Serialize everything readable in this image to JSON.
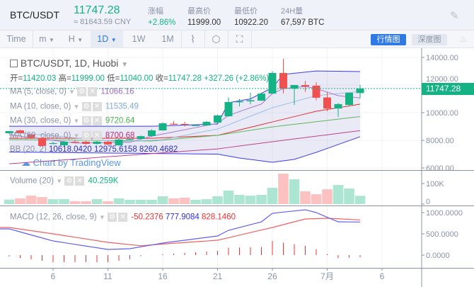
{
  "header": {
    "pair": "BTC/USDT",
    "last_price": "11747.28",
    "cny_price": "≈ 81643.59 CNY",
    "stats": [
      {
        "label": "涨幅",
        "value": "+2.86%",
        "color": "#14b284"
      },
      {
        "label": "最高价",
        "value": "11999.00"
      },
      {
        "label": "最低价",
        "value": "10922.20"
      },
      {
        "label": "24H量",
        "value": "67,597 BTC"
      }
    ],
    "settings_icon": "pen-off-icon"
  },
  "toolbar": {
    "items": [
      "Time",
      "m",
      "H",
      "1D",
      "1W",
      "1M"
    ],
    "active": "1D",
    "dropdown_items": [
      "m",
      "H",
      "1D"
    ],
    "icons": [
      "indicator-icon",
      "hexagon-settings-icon",
      "fullscreen-icon"
    ],
    "buttons": [
      {
        "label": "行情图",
        "active": true
      },
      {
        "label": "深度图",
        "active": false
      }
    ],
    "right_icon": "flame-icon"
  },
  "legend": {
    "title": "BTC/USDT, 1D, Huobi",
    "ohlc": [
      {
        "k": "开=",
        "v": "11420.03"
      },
      {
        "k": "高=",
        "v": "11999.00"
      },
      {
        "k": "低=",
        "v": "11040.00"
      },
      {
        "k": "收=",
        "v": "11747.28"
      }
    ],
    "change": "+327.26 (+2.86%)",
    "studies": [
      {
        "name": "MA (5, close, 0)",
        "value": "11066.16",
        "color": "#9c6bc8"
      },
      {
        "name": "MA (10, close, 0)",
        "value": "11535.49",
        "color": "#7fa8dd"
      },
      {
        "name": "MA (30, close, 0)",
        "value": "9720.64",
        "color": "#4caf50"
      },
      {
        "name": "MA (60, close, 0)",
        "value": "8700.68",
        "color": "#b0307a"
      }
    ],
    "bb": {
      "name": "BB (20, 2)",
      "values": [
        "10618.0420",
        "12975.6158",
        "8260.4682"
      ]
    },
    "watermark": "Chart by TradingView"
  },
  "colors": {
    "up": "#14b284",
    "down": "#f05050",
    "bb": "#3b3bf0",
    "bb_mid": "#e03030",
    "accent": "#2f7ae5"
  },
  "chart_data": {
    "type": "candlestick",
    "price_axis": {
      "ticks": [
        "14000.00",
        "12000.00",
        "10000.00",
        "8000.00",
        "6000.00"
      ],
      "values": [
        14000,
        12000,
        10000,
        8000,
        6000
      ],
      "range": [
        5900,
        14400
      ],
      "last_label": "11747.28"
    },
    "x_ticks": [
      {
        "d": "06-06",
        "label": "6"
      },
      {
        "d": "06-11",
        "label": "11"
      },
      {
        "d": "06-16",
        "label": "16"
      },
      {
        "d": "06-21",
        "label": "21"
      },
      {
        "d": "06-26",
        "label": "26"
      },
      {
        "d": "07-01",
        "label": "7月"
      },
      {
        "d": "07-06",
        "label": "6"
      }
    ],
    "candles": [
      {
        "d": "06-02",
        "o": 8513,
        "h": 8620,
        "l": 8450,
        "c": 8667,
        "v": 22
      },
      {
        "d": "06-03",
        "o": 8718,
        "h": 8760,
        "l": 8480,
        "c": 8513,
        "v": 28
      },
      {
        "d": "06-04",
        "o": 8410,
        "h": 8450,
        "l": 8100,
        "c": 8154,
        "v": 41
      },
      {
        "d": "06-05",
        "o": 8154,
        "h": 8200,
        "l": 7550,
        "c": 7590,
        "v": 34
      },
      {
        "d": "06-06",
        "o": 7750,
        "h": 7900,
        "l": 7700,
        "c": 7800,
        "v": 24
      },
      {
        "d": "06-07",
        "o": 7641,
        "h": 7950,
        "l": 7600,
        "c": 7897,
        "v": 24
      },
      {
        "d": "06-08",
        "o": 7897,
        "h": 8000,
        "l": 7850,
        "c": 7860,
        "v": 14
      },
      {
        "d": "06-09",
        "o": 7897,
        "h": 7950,
        "l": 7700,
        "c": 7741,
        "v": 14
      },
      {
        "d": "06-10",
        "o": 7741,
        "h": 7950,
        "l": 7700,
        "c": 7897,
        "v": 24
      },
      {
        "d": "06-11",
        "o": 7897,
        "h": 7950,
        "l": 7650,
        "c": 7700,
        "v": 14
      },
      {
        "d": "06-12",
        "o": 7641,
        "h": 8100,
        "l": 7600,
        "c": 8051,
        "v": 28
      },
      {
        "d": "06-13",
        "o": 8051,
        "h": 8150,
        "l": 8000,
        "c": 8100,
        "v": 21
      },
      {
        "d": "06-14",
        "o": 8100,
        "h": 8350,
        "l": 8050,
        "c": 8300,
        "v": 21
      },
      {
        "d": "06-15",
        "o": 8308,
        "h": 8800,
        "l": 8250,
        "c": 8718,
        "v": 21
      },
      {
        "d": "06-16",
        "o": 8718,
        "h": 9300,
        "l": 8700,
        "c": 9231,
        "v": 38
      },
      {
        "d": "06-17",
        "o": 9200,
        "h": 9400,
        "l": 9050,
        "c": 9180,
        "v": 28
      },
      {
        "d": "06-18",
        "o": 9180,
        "h": 9350,
        "l": 9000,
        "c": 9120,
        "v": 31
      },
      {
        "d": "06-19",
        "o": 9077,
        "h": 9120,
        "l": 9050,
        "c": 9100,
        "v": 21
      },
      {
        "d": "06-20",
        "o": 9077,
        "h": 9400,
        "l": 9050,
        "c": 9333,
        "v": 24
      },
      {
        "d": "06-21",
        "o": 9280,
        "h": 9850,
        "l": 9250,
        "c": 9800,
        "v": 38
      },
      {
        "d": "06-22",
        "o": 9740,
        "h": 11100,
        "l": 9700,
        "c": 10770,
        "v": 66
      },
      {
        "d": "06-23",
        "o": 10750,
        "h": 11000,
        "l": 10450,
        "c": 10820,
        "v": 45
      },
      {
        "d": "06-24",
        "o": 10820,
        "h": 11450,
        "l": 10600,
        "c": 10900,
        "v": 41
      },
      {
        "d": "06-25",
        "o": 10870,
        "h": 11450,
        "l": 10850,
        "c": 11380,
        "v": 45
      },
      {
        "d": "06-26",
        "o": 11380,
        "h": 13000,
        "l": 11350,
        "c": 12870,
        "v": 79
      },
      {
        "d": "06-27",
        "o": 12870,
        "h": 13900,
        "l": 11400,
        "c": 11740,
        "v": 148
      },
      {
        "d": "06-28",
        "o": 11740,
        "h": 12000,
        "l": 10560,
        "c": 12000,
        "v": 121
      },
      {
        "d": "06-29",
        "o": 12000,
        "h": 12300,
        "l": 11500,
        "c": 11900,
        "v": 62
      },
      {
        "d": "06-30",
        "o": 11950,
        "h": 12200,
        "l": 10900,
        "c": 11080,
        "v": 48
      },
      {
        "d": "07-01",
        "o": 11100,
        "h": 11500,
        "l": 10100,
        "c": 10300,
        "v": 72
      },
      {
        "d": "07-02",
        "o": 10300,
        "h": 10700,
        "l": 9700,
        "c": 10620,
        "v": 93
      },
      {
        "d": "07-03",
        "o": 10560,
        "h": 11450,
        "l": 10450,
        "c": 11440,
        "v": 76
      },
      {
        "d": "07-04",
        "o": 11420.03,
        "h": 11999,
        "l": 11040,
        "c": 11747.28,
        "v": 40.259
      }
    ],
    "lines": {
      "ma5": [
        [
          "06-02",
          8400
        ],
        [
          "06-08",
          7800
        ],
        [
          "06-13",
          7850
        ],
        [
          "06-15",
          8300
        ],
        [
          "06-21",
          9230
        ],
        [
          "06-22",
          9800
        ],
        [
          "06-24",
          10360
        ],
        [
          "06-25",
          10620
        ],
        [
          "06-26",
          11380
        ],
        [
          "06-27",
          11740
        ],
        [
          "06-29",
          11900
        ],
        [
          "06-30",
          11740
        ],
        [
          "07-01",
          11490
        ],
        [
          "07-02",
          11230
        ],
        [
          "07-04",
          11066
        ]
      ],
      "ma10": [
        [
          "06-02",
          8600
        ],
        [
          "06-12",
          7900
        ],
        [
          "06-16",
          8050
        ],
        [
          "06-21",
          8820
        ],
        [
          "06-26",
          10360
        ],
        [
          "06-30",
          11230
        ],
        [
          "07-04",
          11535
        ]
      ],
      "ma30": [
        [
          "06-02",
          8050
        ],
        [
          "06-15",
          7950
        ],
        [
          "06-21",
          8360
        ],
        [
          "06-26",
          8970
        ],
        [
          "07-04",
          9720
        ]
      ],
      "ma60": [
        [
          "06-02",
          6300
        ],
        [
          "06-21",
          7380
        ],
        [
          "06-26",
          7900
        ],
        [
          "07-04",
          8700
        ]
      ],
      "bb_mid": [
        [
          "06-02",
          8150
        ],
        [
          "06-15",
          8150
        ],
        [
          "06-21",
          8360
        ],
        [
          "06-26",
          9330
        ],
        [
          "06-30",
          10100
        ],
        [
          "07-04",
          10618
        ]
      ],
      "bb_upper": [
        [
          "06-02",
          9020
        ],
        [
          "06-15",
          9020
        ],
        [
          "06-21",
          9180
        ],
        [
          "06-22",
          10720
        ],
        [
          "06-24",
          11000
        ],
        [
          "06-26",
          11800
        ],
        [
          "06-27",
          12770
        ],
        [
          "06-30",
          13020
        ],
        [
          "07-04",
          12975
        ]
      ],
      "bb_lower": [
        [
          "06-02",
          7150
        ],
        [
          "06-21",
          7000
        ],
        [
          "06-23",
          6720
        ],
        [
          "06-26",
          6410
        ],
        [
          "06-28",
          6620
        ],
        [
          "06-30",
          7130
        ],
        [
          "07-04",
          8260
        ]
      ]
    },
    "volume": {
      "title": "Volume (20)",
      "value": "40.259K",
      "unit": "K",
      "ticks": [
        "100K",
        "0"
      ],
      "tick_values": [
        100,
        0
      ]
    },
    "macd": {
      "title": "MACD (12, 26, close, 9)",
      "values": [
        "-50.2376",
        "777.9084",
        "828.1460"
      ],
      "value_colors": [
        "#f03030",
        "#3030f0",
        "#f03030"
      ],
      "ticks": [
        "1000.0000",
        "500.0000",
        "0.0000"
      ],
      "tick_values": [
        1000,
        500,
        0
      ],
      "dif": [
        [
          "06-02",
          617
        ],
        [
          "06-06",
          333
        ],
        [
          "06-11",
          133
        ],
        [
          "06-13",
          150
        ],
        [
          "06-16",
          283
        ],
        [
          "06-21",
          450
        ],
        [
          "06-22",
          583
        ],
        [
          "06-25",
          783
        ],
        [
          "06-26",
          983
        ],
        [
          "06-29",
          1067
        ],
        [
          "06-30",
          1000
        ],
        [
          "07-02",
          783
        ],
        [
          "07-04",
          778
        ]
      ],
      "dea": [
        [
          "06-02",
          650
        ],
        [
          "06-06",
          500
        ],
        [
          "06-11",
          300
        ],
        [
          "06-14",
          220
        ],
        [
          "06-16",
          260
        ],
        [
          "06-21",
          350
        ],
        [
          "06-26",
          650
        ],
        [
          "06-29",
          850
        ],
        [
          "07-01",
          867
        ],
        [
          "07-04",
          828
        ]
      ]
    }
  }
}
